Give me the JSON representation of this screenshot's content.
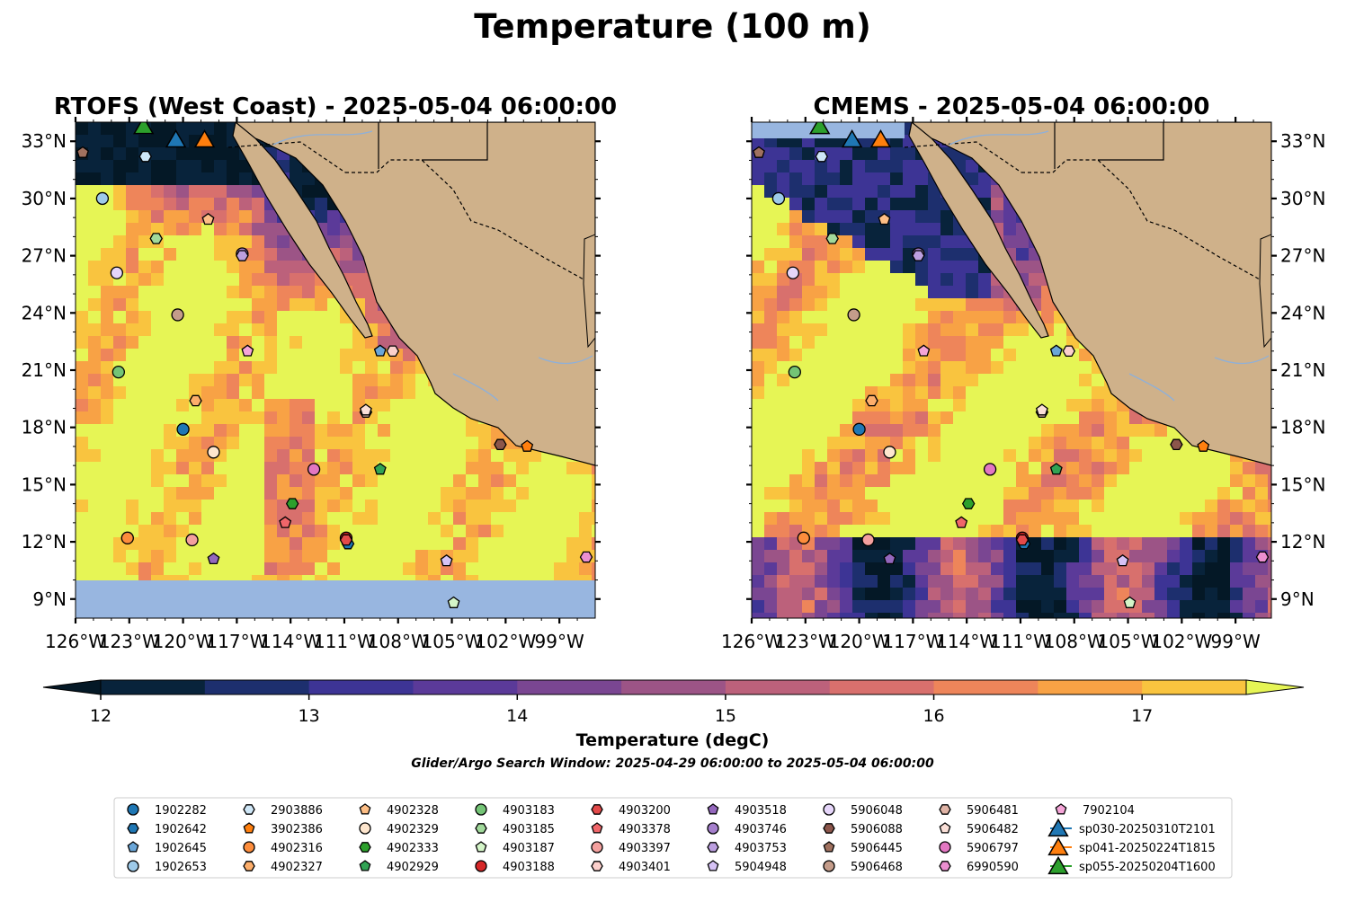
{
  "figure": {
    "title": "Temperature (100 m)",
    "search_window": "Glider/Argo Search Window: 2025-04-29 06:00:00 to 2025-05-04 06:00:00"
  },
  "panels": [
    {
      "title": "RTOFS (West Coast) - 2025-05-04 06:00:00",
      "variant": "rtofs"
    },
    {
      "title": "CMEMS - 2025-05-04 06:00:00",
      "variant": "cmems"
    }
  ],
  "axes": {
    "lon_ticks": [
      "126°W",
      "123°W",
      "120°W",
      "117°W",
      "114°W",
      "111°W",
      "108°W",
      "105°W",
      "102°W",
      "99°W"
    ],
    "lat_ticks": [
      "33°N",
      "30°N",
      "27°N",
      "24°N",
      "21°N",
      "18°N",
      "15°N",
      "12°N",
      "9°N"
    ]
  },
  "colorbar": {
    "label": "Temperature (degC)",
    "ticks": [
      "12",
      "13",
      "14",
      "15",
      "16",
      "17"
    ],
    "vmin": 12,
    "vmax": 17.5,
    "extend": "both",
    "colors": [
      "#08233b",
      "#1d2f6e",
      "#3d3495",
      "#5b3a99",
      "#7a4692",
      "#9c5486",
      "#bc617b",
      "#d8706d",
      "#ee855a",
      "#f8a245",
      "#f9c43f"
    ],
    "over_color": "#e6f555",
    "under_color": "#041826"
  },
  "map_colors": {
    "land": "#cfb18a",
    "nodata": "#98b6e0"
  },
  "legend": {
    "entries": [
      {
        "label": "1902282",
        "color": "#1f77b4",
        "marker": "circle"
      },
      {
        "label": "1902642",
        "color": "#1f77b4",
        "marker": "hexagon"
      },
      {
        "label": "1902645",
        "color": "#6aa6d8",
        "marker": "pentagon"
      },
      {
        "label": "1902653",
        "color": "#9ecae9",
        "marker": "circle"
      },
      {
        "label": "2903886",
        "color": "#cfe7f7",
        "marker": "hexagon"
      },
      {
        "label": "3902386",
        "color": "#ff7f0e",
        "marker": "pentagon"
      },
      {
        "label": "4902316",
        "color": "#fd8d3c",
        "marker": "circle"
      },
      {
        "label": "4902327",
        "color": "#fdae6b",
        "marker": "hexagon"
      },
      {
        "label": "4902328",
        "color": "#fdbe85",
        "marker": "pentagon"
      },
      {
        "label": "4902329",
        "color": "#fee6ce",
        "marker": "circle"
      },
      {
        "label": "4902333",
        "color": "#2ca02c",
        "marker": "hexagon"
      },
      {
        "label": "4902929",
        "color": "#31a354",
        "marker": "pentagon"
      },
      {
        "label": "4903183",
        "color": "#74c476",
        "marker": "circle"
      },
      {
        "label": "4903185",
        "color": "#a1d99b",
        "marker": "hexagon"
      },
      {
        "label": "4903187",
        "color": "#d4f5c8",
        "marker": "pentagon"
      },
      {
        "label": "4903188",
        "color": "#d62728",
        "marker": "circle"
      },
      {
        "label": "4903200",
        "color": "#e34a4a",
        "marker": "hexagon"
      },
      {
        "label": "4903378",
        "color": "#f0666a",
        "marker": "pentagon"
      },
      {
        "label": "4903397",
        "color": "#f4a09e",
        "marker": "circle"
      },
      {
        "label": "4903401",
        "color": "#fcd0cc",
        "marker": "hexagon"
      },
      {
        "label": "4903518",
        "color": "#9467bd",
        "marker": "pentagon"
      },
      {
        "label": "4903746",
        "color": "#a57fcc",
        "marker": "circle"
      },
      {
        "label": "4903753",
        "color": "#bc9fe0",
        "marker": "hexagon"
      },
      {
        "label": "5904948",
        "color": "#d6c2f5",
        "marker": "pentagon"
      },
      {
        "label": "5906048",
        "color": "#e6d6fa",
        "marker": "circle"
      },
      {
        "label": "5906088",
        "color": "#8c564b",
        "marker": "hexagon"
      },
      {
        "label": "5906445",
        "color": "#a0715f",
        "marker": "pentagon"
      },
      {
        "label": "5906468",
        "color": "#c49c8a",
        "marker": "circle"
      },
      {
        "label": "5906481",
        "color": "#e0b4a6",
        "marker": "hexagon"
      },
      {
        "label": "5906482",
        "color": "#fbe0d8",
        "marker": "pentagon"
      },
      {
        "label": "5906797",
        "color": "#e377c2",
        "marker": "circle"
      },
      {
        "label": "6990590",
        "color": "#eb8fd0",
        "marker": "hexagon"
      },
      {
        "label": "7902104",
        "color": "#f5a5d8",
        "marker": "pentagon"
      },
      {
        "label": "sp030-20250310T2101",
        "color": "#1f77b4",
        "marker": "triangle"
      },
      {
        "label": "sp041-20250224T1815",
        "color": "#ff7f0e",
        "marker": "triangle"
      },
      {
        "label": "sp055-20250204T1600",
        "color": "#2ca02c",
        "marker": "triangle"
      }
    ]
  },
  "chart_data": {
    "type": "map",
    "projection": "PlateCarree",
    "lon_range": [
      -126,
      -97
    ],
    "lat_range": [
      8,
      34
    ],
    "variable": "Temperature (100 m)",
    "units": "degC",
    "floats": [
      {
        "id": "1902282",
        "lon": -120.0,
        "lat": 17.9
      },
      {
        "id": "1902642",
        "lon": -110.8,
        "lat": 11.9
      },
      {
        "id": "1902645",
        "lon": -109.0,
        "lat": 22.0
      },
      {
        "id": "1902653",
        "lon": -124.5,
        "lat": 30.0
      },
      {
        "id": "2903886",
        "lon": -122.1,
        "lat": 32.2
      },
      {
        "id": "3902386",
        "lon": -100.8,
        "lat": 17.0
      },
      {
        "id": "4902316",
        "lon": -123.1,
        "lat": 12.2
      },
      {
        "id": "4902327",
        "lon": -119.3,
        "lat": 19.4
      },
      {
        "id": "4902328",
        "lon": -118.6,
        "lat": 28.9
      },
      {
        "id": "4902329",
        "lon": -118.3,
        "lat": 16.7
      },
      {
        "id": "4902333",
        "lon": -113.9,
        "lat": 14.0
      },
      {
        "id": "4902929",
        "lon": -109.0,
        "lat": 15.8
      },
      {
        "id": "4903183",
        "lon": -123.6,
        "lat": 20.9
      },
      {
        "id": "4903185",
        "lon": -121.5,
        "lat": 27.9
      },
      {
        "id": "4903187",
        "lon": -104.9,
        "lat": 8.8
      },
      {
        "id": "4903188",
        "lon": -110.9,
        "lat": 12.2
      },
      {
        "id": "4903200",
        "lon": -110.9,
        "lat": 12.1
      },
      {
        "id": "4903378",
        "lon": -114.3,
        "lat": 13.0
      },
      {
        "id": "4903397",
        "lon": -119.5,
        "lat": 12.1
      },
      {
        "id": "4903401",
        "lon": -108.3,
        "lat": 22.0
      },
      {
        "id": "4903518",
        "lon": -118.3,
        "lat": 11.1
      },
      {
        "id": "4903746",
        "lon": -116.7,
        "lat": 27.1
      },
      {
        "id": "4903753",
        "lon": -116.7,
        "lat": 27.0
      },
      {
        "id": "5904948",
        "lon": -105.3,
        "lat": 11.0
      },
      {
        "id": "5906048",
        "lon": -123.7,
        "lat": 26.1
      },
      {
        "id": "5906088",
        "lon": -102.3,
        "lat": 17.1
      },
      {
        "id": "5906445",
        "lon": -125.6,
        "lat": 32.4
      },
      {
        "id": "5906468",
        "lon": -120.3,
        "lat": 23.9
      },
      {
        "id": "5906481",
        "lon": -109.8,
        "lat": 18.8
      },
      {
        "id": "5906482",
        "lon": -109.8,
        "lat": 18.9
      },
      {
        "id": "5906797",
        "lon": -112.7,
        "lat": 15.8
      },
      {
        "id": "6990590",
        "lon": -97.5,
        "lat": 11.2
      },
      {
        "id": "7902104",
        "lon": -116.4,
        "lat": 22.0
      }
    ],
    "gliders": [
      {
        "id": "sp030-20250310T2101",
        "lon": -120.4,
        "lat": 33.1
      },
      {
        "id": "sp041-20250224T1815",
        "lon": -118.8,
        "lat": 33.1
      },
      {
        "id": "sp055-20250204T1600",
        "lon": -122.2,
        "lat": 33.8
      }
    ]
  }
}
